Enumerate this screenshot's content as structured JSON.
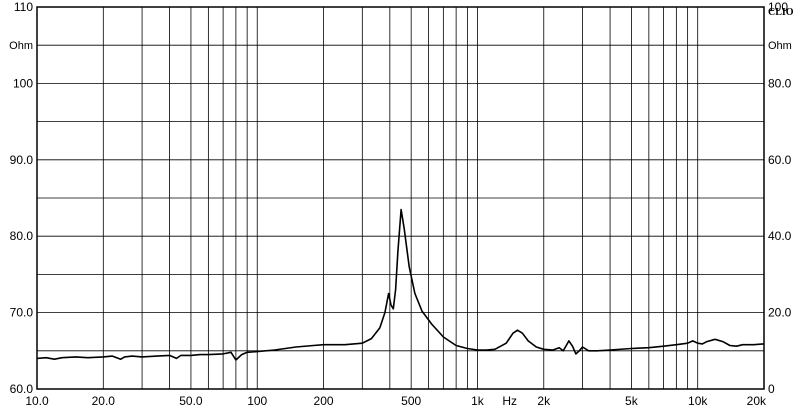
{
  "chart_data": {
    "type": "line",
    "title": "",
    "brand": "CLIO",
    "x_scale": "log",
    "xlim": [
      10,
      20000
    ],
    "xlabel": "Hz",
    "x_ticks": [
      {
        "value": 10,
        "label": "10.0"
      },
      {
        "value": 20,
        "label": "20.0"
      },
      {
        "value": 50,
        "label": "50.0"
      },
      {
        "value": 100,
        "label": "100"
      },
      {
        "value": 200,
        "label": "200"
      },
      {
        "value": 500,
        "label": "500"
      },
      {
        "value": 1000,
        "label": "1k"
      },
      {
        "value": 2000,
        "label": "2k"
      },
      {
        "value": 5000,
        "label": "5k"
      },
      {
        "value": 10000,
        "label": "10k"
      },
      {
        "value": 20000,
        "label": "20k"
      }
    ],
    "x_unit_label": {
      "value": 1400,
      "label": "Hz"
    },
    "left_axis": {
      "unit": "Ohm",
      "ylim": [
        60,
        110
      ],
      "ticks": [
        {
          "value": 110,
          "label": "110"
        },
        {
          "value": 100,
          "label": "100"
        },
        {
          "value": 90,
          "label": "90.0"
        },
        {
          "value": 80,
          "label": "80.0"
        },
        {
          "value": 70,
          "label": "70.0"
        },
        {
          "value": 60,
          "label": "60.0"
        }
      ]
    },
    "right_axis": {
      "unit": "Ohm",
      "ylim": [
        0,
        100
      ],
      "ticks": [
        {
          "value": 100,
          "label": "100"
        },
        {
          "value": 80,
          "label": "80.0"
        },
        {
          "value": 60,
          "label": "60.0"
        },
        {
          "value": 40,
          "label": "40.0"
        },
        {
          "value": 20,
          "label": "20.0"
        },
        {
          "value": 0,
          "label": "0"
        }
      ]
    },
    "grid": true,
    "series": [
      {
        "axis": "left",
        "color": "#000000",
        "points": [
          [
            10,
            64.0
          ],
          [
            11,
            64.1
          ],
          [
            12,
            63.9
          ],
          [
            13,
            64.1
          ],
          [
            15,
            64.2
          ],
          [
            17,
            64.1
          ],
          [
            20,
            64.2
          ],
          [
            22,
            64.3
          ],
          [
            24,
            63.9
          ],
          [
            25,
            64.2
          ],
          [
            27,
            64.3
          ],
          [
            30,
            64.2
          ],
          [
            35,
            64.3
          ],
          [
            40,
            64.4
          ],
          [
            43,
            64.0
          ],
          [
            45,
            64.4
          ],
          [
            50,
            64.4
          ],
          [
            55,
            64.5
          ],
          [
            60,
            64.5
          ],
          [
            70,
            64.6
          ],
          [
            76,
            64.8
          ],
          [
            80,
            63.8
          ],
          [
            85,
            64.5
          ],
          [
            90,
            64.8
          ],
          [
            100,
            64.9
          ],
          [
            120,
            65.1
          ],
          [
            150,
            65.5
          ],
          [
            180,
            65.7
          ],
          [
            200,
            65.8
          ],
          [
            250,
            65.8
          ],
          [
            300,
            66.0
          ],
          [
            330,
            66.6
          ],
          [
            360,
            68.0
          ],
          [
            380,
            70.0
          ],
          [
            395,
            72.5
          ],
          [
            405,
            71.0
          ],
          [
            415,
            70.5
          ],
          [
            425,
            73.0
          ],
          [
            435,
            78.0
          ],
          [
            450,
            83.5
          ],
          [
            465,
            81.0
          ],
          [
            490,
            76.0
          ],
          [
            520,
            72.5
          ],
          [
            560,
            70.2
          ],
          [
            620,
            68.5
          ],
          [
            700,
            66.8
          ],
          [
            800,
            65.7
          ],
          [
            900,
            65.3
          ],
          [
            1000,
            65.1
          ],
          [
            1100,
            65.1
          ],
          [
            1200,
            65.2
          ],
          [
            1350,
            66.0
          ],
          [
            1450,
            67.3
          ],
          [
            1520,
            67.7
          ],
          [
            1600,
            67.3
          ],
          [
            1700,
            66.3
          ],
          [
            1850,
            65.5
          ],
          [
            2000,
            65.2
          ],
          [
            2200,
            65.1
          ],
          [
            2350,
            65.4
          ],
          [
            2450,
            65.0
          ],
          [
            2600,
            66.3
          ],
          [
            2700,
            65.6
          ],
          [
            2800,
            64.6
          ],
          [
            2900,
            65.0
          ],
          [
            3000,
            65.5
          ],
          [
            3200,
            65.0
          ],
          [
            3500,
            65.0
          ],
          [
            4000,
            65.1
          ],
          [
            5000,
            65.3
          ],
          [
            6000,
            65.4
          ],
          [
            7000,
            65.6
          ],
          [
            8000,
            65.8
          ],
          [
            9000,
            66.0
          ],
          [
            9500,
            66.3
          ],
          [
            10000,
            66.0
          ],
          [
            10500,
            65.9
          ],
          [
            11000,
            66.2
          ],
          [
            12000,
            66.5
          ],
          [
            13000,
            66.2
          ],
          [
            14000,
            65.7
          ],
          [
            15000,
            65.6
          ],
          [
            16000,
            65.8
          ],
          [
            18000,
            65.8
          ],
          [
            20000,
            65.9
          ]
        ]
      }
    ]
  }
}
